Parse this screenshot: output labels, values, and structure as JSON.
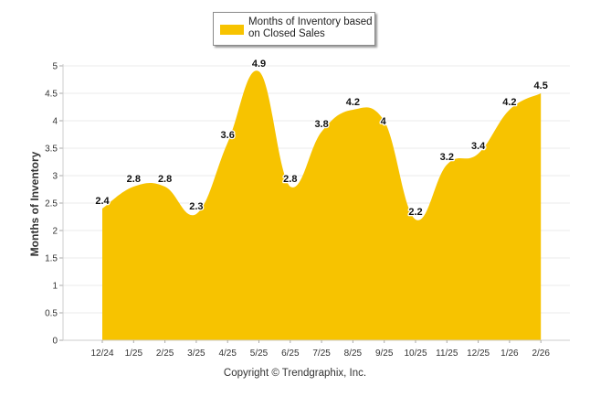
{
  "chart_data": {
    "type": "area",
    "categories": [
      "12/24",
      "1/25",
      "2/25",
      "3/25",
      "4/25",
      "5/25",
      "6/25",
      "7/25",
      "8/25",
      "9/25",
      "10/25",
      "11/25",
      "12/25",
      "1/26",
      "2/26"
    ],
    "series": [
      {
        "name": "Months of Inventory based on Closed Sales",
        "values": [
          2.4,
          2.8,
          2.8,
          2.3,
          3.6,
          4.9,
          2.8,
          3.8,
          4.2,
          4,
          2.2,
          3.2,
          3.4,
          4.2,
          4.5
        ]
      }
    ],
    "data_labels": [
      "2.4",
      "2.8",
      "2.8",
      "2.3",
      "3.6",
      "4.9",
      "2.8",
      "3.8",
      "4.2",
      "4",
      "2.2",
      "3.2",
      "3.4",
      "4.2",
      "4.5"
    ],
    "ylabel": "Months of Inventory",
    "xlabel": "",
    "ylim": [
      0,
      5
    ],
    "yticks": [
      "0",
      "0.5",
      "1",
      "1.5",
      "2",
      "2.5",
      "3",
      "3.5",
      "4",
      "4.5",
      "5"
    ],
    "grid": true,
    "legend_position": "top-center",
    "colors": {
      "fill": "#F7C300",
      "grid": "#ebebeb",
      "axis": "#cccccc"
    }
  },
  "legend": {
    "label": "Months of Inventory based on Closed Sales"
  },
  "footer": {
    "copyright": "Copyright © Trendgraphix, Inc."
  }
}
